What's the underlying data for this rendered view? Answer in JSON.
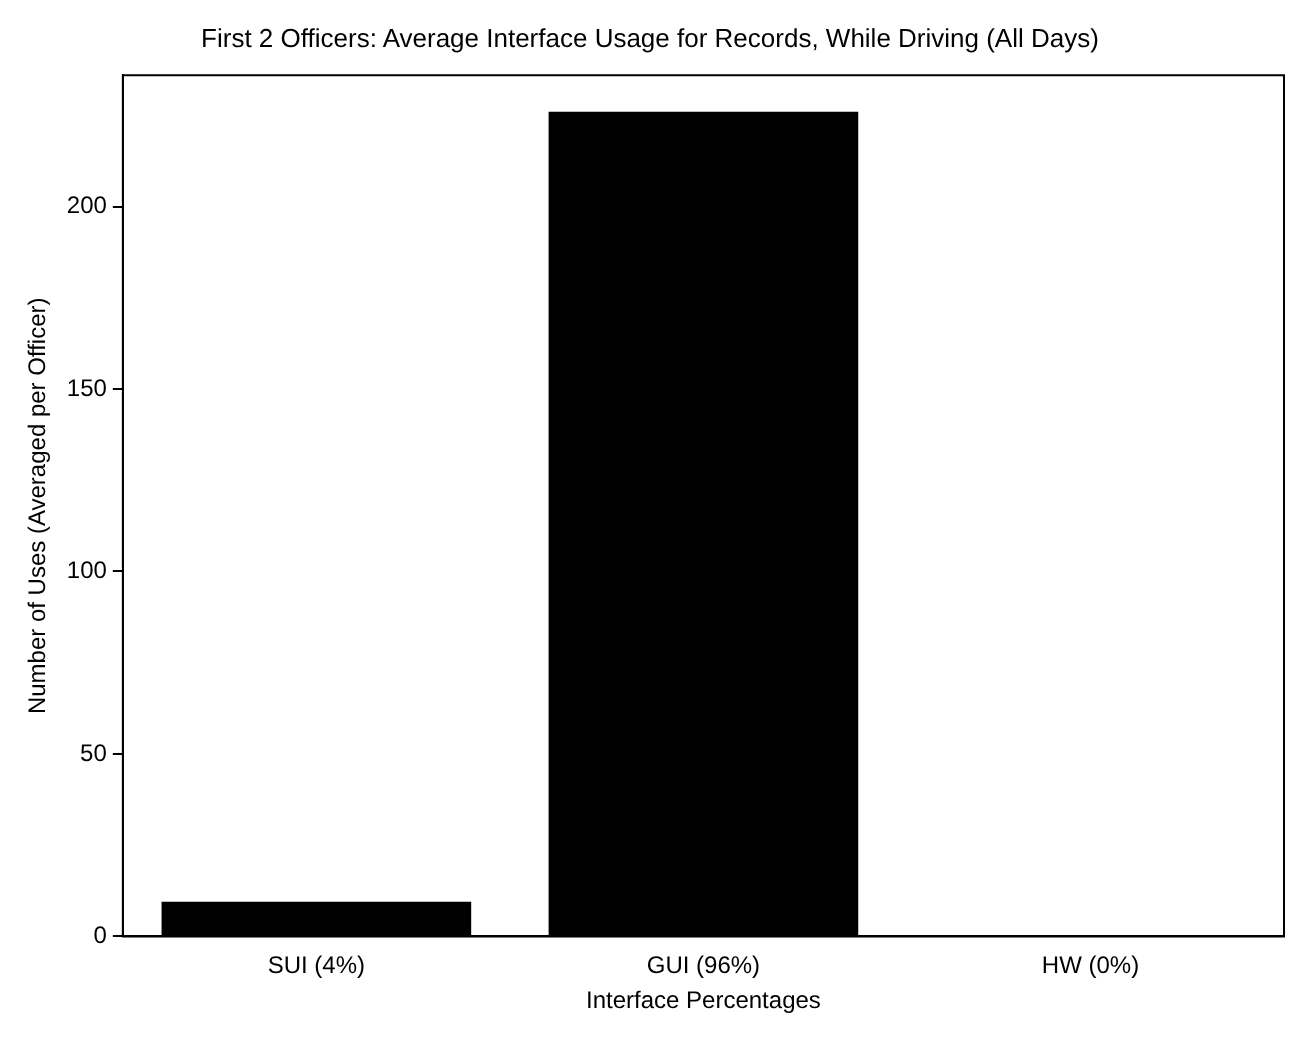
{
  "chart_data": {
    "type": "bar",
    "title": "First 2 Officers: Average Interface Usage for Records, While Driving (All Days)",
    "xlabel": "Interface Percentages",
    "ylabel": "Number of Uses (Averaged per Officer)",
    "categories": [
      "SUI (4%)",
      "GUI (96%)",
      "HW (0%)"
    ],
    "values": [
      9.5,
      226,
      0
    ],
    "color": "#000000",
    "ylim": [
      0,
      236
    ],
    "yticks": [
      0,
      50,
      100,
      150,
      200
    ],
    "grid": false,
    "legend": false
  }
}
